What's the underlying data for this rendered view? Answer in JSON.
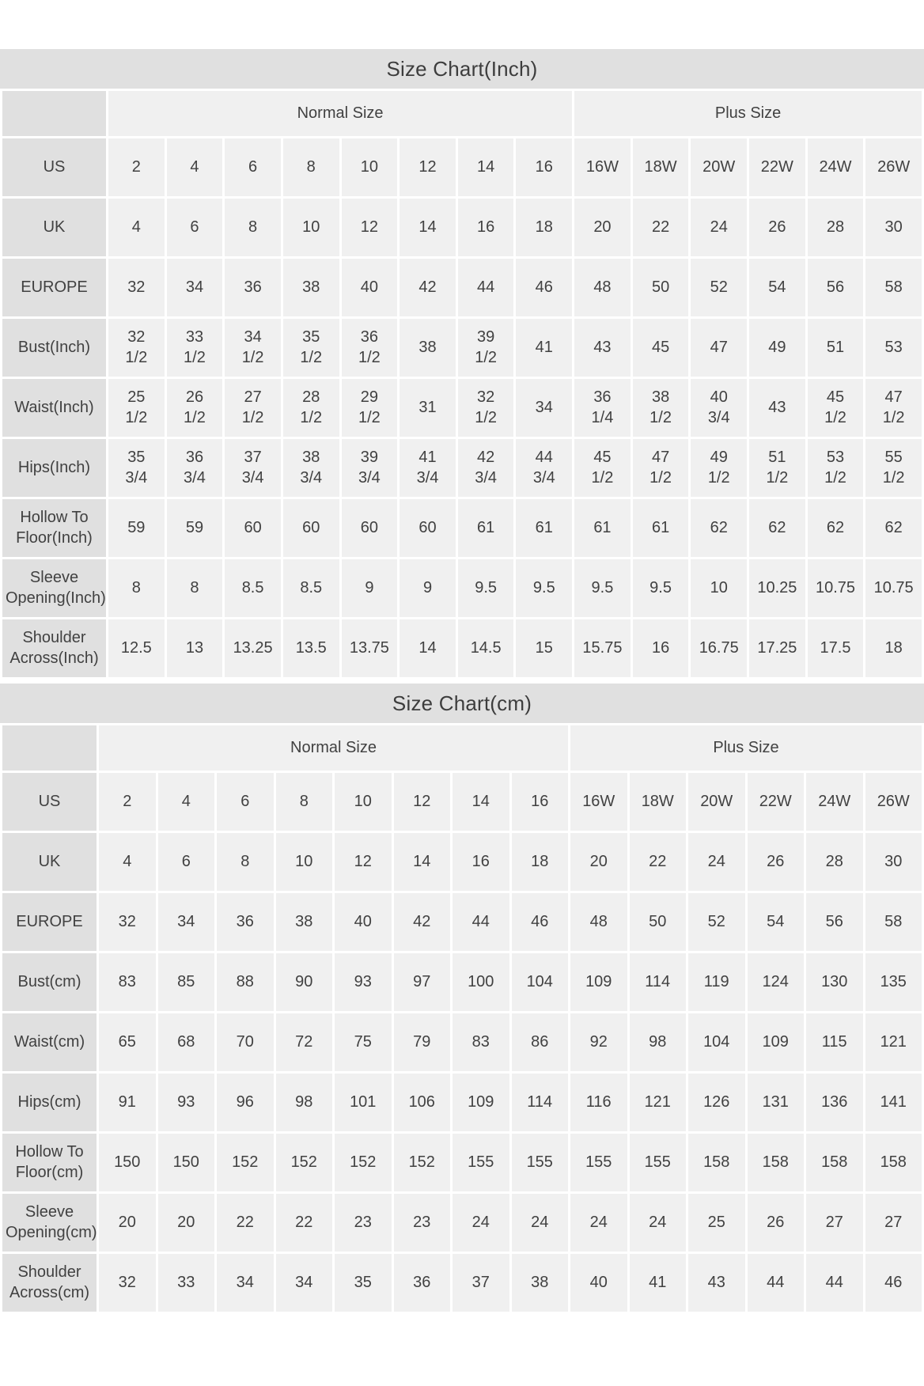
{
  "colors": {
    "title_band": "#e0e0e0",
    "label_cell": "#e0e0e0",
    "data_cell": "#f0f0f0",
    "gutter": "#ffffff",
    "text": "#404040"
  },
  "tables": [
    {
      "title": "Size Chart(Inch)",
      "group_headers": [
        {
          "label": "Normal Size",
          "span": 8
        },
        {
          "label": "Plus Size",
          "span": 6
        }
      ],
      "rows": [
        {
          "label": "US",
          "values": [
            "2",
            "4",
            "6",
            "8",
            "10",
            "12",
            "14",
            "16",
            "16W",
            "18W",
            "20W",
            "22W",
            "24W",
            "26W"
          ]
        },
        {
          "label": "UK",
          "values": [
            "4",
            "6",
            "8",
            "10",
            "12",
            "14",
            "16",
            "18",
            "20",
            "22",
            "24",
            "26",
            "28",
            "30"
          ]
        },
        {
          "label": "EUROPE",
          "values": [
            "32",
            "34",
            "36",
            "38",
            "40",
            "42",
            "44",
            "46",
            "48",
            "50",
            "52",
            "54",
            "56",
            "58"
          ]
        },
        {
          "label": "Bust(Inch)",
          "values": [
            "32\n1/2",
            "33\n1/2",
            "34\n1/2",
            "35\n1/2",
            "36\n1/2",
            "38",
            "39\n1/2",
            "41",
            "43",
            "45",
            "47",
            "49",
            "51",
            "53"
          ]
        },
        {
          "label": "Waist(Inch)",
          "values": [
            "25\n1/2",
            "26\n1/2",
            "27\n1/2",
            "28\n1/2",
            "29\n1/2",
            "31",
            "32\n1/2",
            "34",
            "36\n1/4",
            "38\n1/2",
            "40\n3/4",
            "43",
            "45\n1/2",
            "47\n1/2"
          ]
        },
        {
          "label": "Hips(Inch)",
          "values": [
            "35\n3/4",
            "36\n3/4",
            "37\n3/4",
            "38\n3/4",
            "39\n3/4",
            "41\n3/4",
            "42\n3/4",
            "44\n3/4",
            "45\n1/2",
            "47\n1/2",
            "49\n1/2",
            "51\n1/2",
            "53\n1/2",
            "55\n1/2"
          ]
        },
        {
          "label": "Hollow To\nFloor(Inch)",
          "values": [
            "59",
            "59",
            "60",
            "60",
            "60",
            "60",
            "61",
            "61",
            "61",
            "61",
            "62",
            "62",
            "62",
            "62"
          ]
        },
        {
          "label": "Sleeve\nOpening(Inch)",
          "values": [
            "8",
            "8",
            "8.5",
            "8.5",
            "9",
            "9",
            "9.5",
            "9.5",
            "9.5",
            "9.5",
            "10",
            "10.25",
            "10.75",
            "10.75"
          ]
        },
        {
          "label": "Shoulder\nAcross(Inch)",
          "values": [
            "12.5",
            "13",
            "13.25",
            "13.5",
            "13.75",
            "14",
            "14.5",
            "15",
            "15.75",
            "16",
            "16.75",
            "17.25",
            "17.5",
            "18"
          ]
        }
      ]
    },
    {
      "title": "Size Chart(cm)",
      "group_headers": [
        {
          "label": "Normal Size",
          "span": 8
        },
        {
          "label": "Plus Size",
          "span": 6
        }
      ],
      "rows": [
        {
          "label": "US",
          "values": [
            "2",
            "4",
            "6",
            "8",
            "10",
            "12",
            "14",
            "16",
            "16W",
            "18W",
            "20W",
            "22W",
            "24W",
            "26W"
          ]
        },
        {
          "label": "UK",
          "values": [
            "4",
            "6",
            "8",
            "10",
            "12",
            "14",
            "16",
            "18",
            "20",
            "22",
            "24",
            "26",
            "28",
            "30"
          ]
        },
        {
          "label": "EUROPE",
          "values": [
            "32",
            "34",
            "36",
            "38",
            "40",
            "42",
            "44",
            "46",
            "48",
            "50",
            "52",
            "54",
            "56",
            "58"
          ]
        },
        {
          "label": "Bust(cm)",
          "values": [
            "83",
            "85",
            "88",
            "90",
            "93",
            "97",
            "100",
            "104",
            "109",
            "114",
            "119",
            "124",
            "130",
            "135"
          ]
        },
        {
          "label": "Waist(cm)",
          "values": [
            "65",
            "68",
            "70",
            "72",
            "75",
            "79",
            "83",
            "86",
            "92",
            "98",
            "104",
            "109",
            "115",
            "121"
          ]
        },
        {
          "label": "Hips(cm)",
          "values": [
            "91",
            "93",
            "96",
            "98",
            "101",
            "106",
            "109",
            "114",
            "116",
            "121",
            "126",
            "131",
            "136",
            "141"
          ]
        },
        {
          "label": "Hollow To\nFloor(cm)",
          "values": [
            "150",
            "150",
            "152",
            "152",
            "152",
            "152",
            "155",
            "155",
            "155",
            "155",
            "158",
            "158",
            "158",
            "158"
          ]
        },
        {
          "label": "Sleeve\nOpening(cm)",
          "values": [
            "20",
            "20",
            "22",
            "22",
            "23",
            "23",
            "24",
            "24",
            "24",
            "24",
            "25",
            "26",
            "27",
            "27"
          ]
        },
        {
          "label": "Shoulder\nAcross(cm)",
          "values": [
            "32",
            "33",
            "34",
            "34",
            "35",
            "36",
            "37",
            "38",
            "40",
            "41",
            "43",
            "44",
            "44",
            "46"
          ]
        }
      ]
    }
  ]
}
